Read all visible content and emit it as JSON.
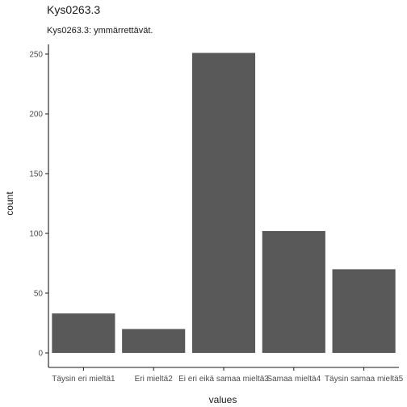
{
  "chart_data": {
    "type": "bar",
    "title": "Kys0263.3",
    "subtitle": "Kys0263.3: ymmärrettävät.",
    "xlabel": "values",
    "ylabel": "count",
    "categories": [
      "Täysin eri mieltä1",
      "Eri mieltä2",
      "Ei eri eikä samaa mieltä3",
      "Samaa mieltä4",
      "Täysin samaa mieltä5"
    ],
    "values": [
      33,
      20,
      251,
      102,
      70
    ],
    "ylim": [
      0,
      262
    ],
    "yticks": [
      0,
      50,
      100,
      150,
      200,
      250
    ],
    "grid": false,
    "bar_color": "#595959",
    "axis_color": "#1a1a1a"
  }
}
